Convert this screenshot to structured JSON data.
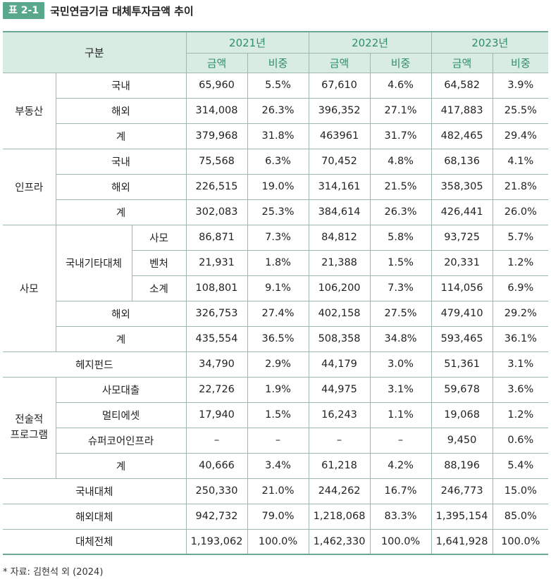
{
  "header": {
    "badge": "표 2-1",
    "title": "국민연금기금 대체투자금액 추이"
  },
  "table": {
    "corner": "구분",
    "years": [
      "2021년",
      "2022년",
      "2023년"
    ],
    "sub": [
      "금액",
      "비중"
    ],
    "groups": {
      "real_estate": "부동산",
      "infra": "인프라",
      "pe": "사모",
      "pe_domestic_other": "국내기타대체",
      "hedge": "헤지펀드",
      "strategic": "전술적\n프로그램"
    },
    "rows": [
      {
        "label": "국내",
        "v": [
          "65,960",
          "5.5%",
          "67,610",
          "4.6%",
          "64,582",
          "3.9%"
        ]
      },
      {
        "label": "해외",
        "v": [
          "314,008",
          "26.3%",
          "396,352",
          "27.1%",
          "417,883",
          "25.5%"
        ]
      },
      {
        "label": "계",
        "v": [
          "379,968",
          "31.8%",
          "463961",
          "31.7%",
          "482,465",
          "29.4%"
        ]
      },
      {
        "label": "국내",
        "v": [
          "75,568",
          "6.3%",
          "70,452",
          "4.8%",
          "68,136",
          "4.1%"
        ]
      },
      {
        "label": "해외",
        "v": [
          "226,515",
          "19.0%",
          "314,161",
          "21.5%",
          "358,305",
          "21.8%"
        ]
      },
      {
        "label": "계",
        "v": [
          "302,083",
          "25.3%",
          "384,614",
          "26.3%",
          "426,441",
          "26.0%"
        ]
      },
      {
        "label": "사모",
        "v": [
          "86,871",
          "7.3%",
          "84,812",
          "5.8%",
          "93,725",
          "5.7%"
        ]
      },
      {
        "label": "벤처",
        "v": [
          "21,931",
          "1.8%",
          "21,388",
          "1.5%",
          "20,331",
          "1.2%"
        ]
      },
      {
        "label": "소계",
        "v": [
          "108,801",
          "9.1%",
          "106,200",
          "7.3%",
          "114,056",
          "6.9%"
        ]
      },
      {
        "label": "해외",
        "v": [
          "326,753",
          "27.4%",
          "402,158",
          "27.5%",
          "479,410",
          "29.2%"
        ]
      },
      {
        "label": "계",
        "v": [
          "435,554",
          "36.5%",
          "508,358",
          "34.8%",
          "593,465",
          "36.1%"
        ]
      },
      {
        "label": "헤지펀드",
        "v": [
          "34,790",
          "2.9%",
          "44,179",
          "3.0%",
          "51,361",
          "3.1%"
        ]
      },
      {
        "label": "사모대출",
        "v": [
          "22,726",
          "1.9%",
          "44,975",
          "3.1%",
          "59,678",
          "3.6%"
        ]
      },
      {
        "label": "멀티에셋",
        "v": [
          "17,940",
          "1.5%",
          "16,243",
          "1.1%",
          "19,068",
          "1.2%"
        ]
      },
      {
        "label": "슈퍼코어인프라",
        "v": [
          "–",
          "–",
          "–",
          "–",
          "9,450",
          "0.6%"
        ]
      },
      {
        "label": "계",
        "v": [
          "40,666",
          "3.4%",
          "61,218",
          "4.2%",
          "88,196",
          "5.4%"
        ]
      },
      {
        "label": "국내대체",
        "v": [
          "250,330",
          "21.0%",
          "244,262",
          "16.7%",
          "246,773",
          "15.0%"
        ]
      },
      {
        "label": "해외대체",
        "v": [
          "942,732",
          "79.0%",
          "1,218,068",
          "83.3%",
          "1,395,154",
          "85.0%"
        ]
      },
      {
        "label": "대체전체",
        "v": [
          "1,193,062",
          "100.0%",
          "1,462,330",
          "100.0%",
          "1,641,928",
          "100.0%"
        ]
      }
    ]
  },
  "footnote": "* 자료: 김현석 외 (2024)"
}
